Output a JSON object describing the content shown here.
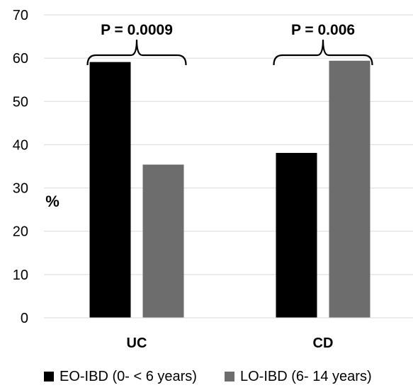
{
  "chart_data": {
    "type": "bar",
    "categories": [
      "UC",
      "CD"
    ],
    "series": [
      {
        "name": "EO-IBD (0- < 6 years)",
        "values": [
          59.1,
          38.1
        ],
        "color": "#000000"
      },
      {
        "name": "LO-IBD (6- 14 years)",
        "values": [
          35.4,
          59.4
        ],
        "color": "#6d6d6d"
      }
    ],
    "ylabel": "%",
    "ylim": [
      0,
      70
    ],
    "yticks": [
      0,
      10,
      20,
      30,
      40,
      50,
      60,
      70
    ],
    "grid": true,
    "legend": "bottom",
    "annotations": [
      {
        "category": "UC",
        "text": "P = 0.0009"
      },
      {
        "category": "CD",
        "text": "P = 0.006"
      }
    ]
  }
}
